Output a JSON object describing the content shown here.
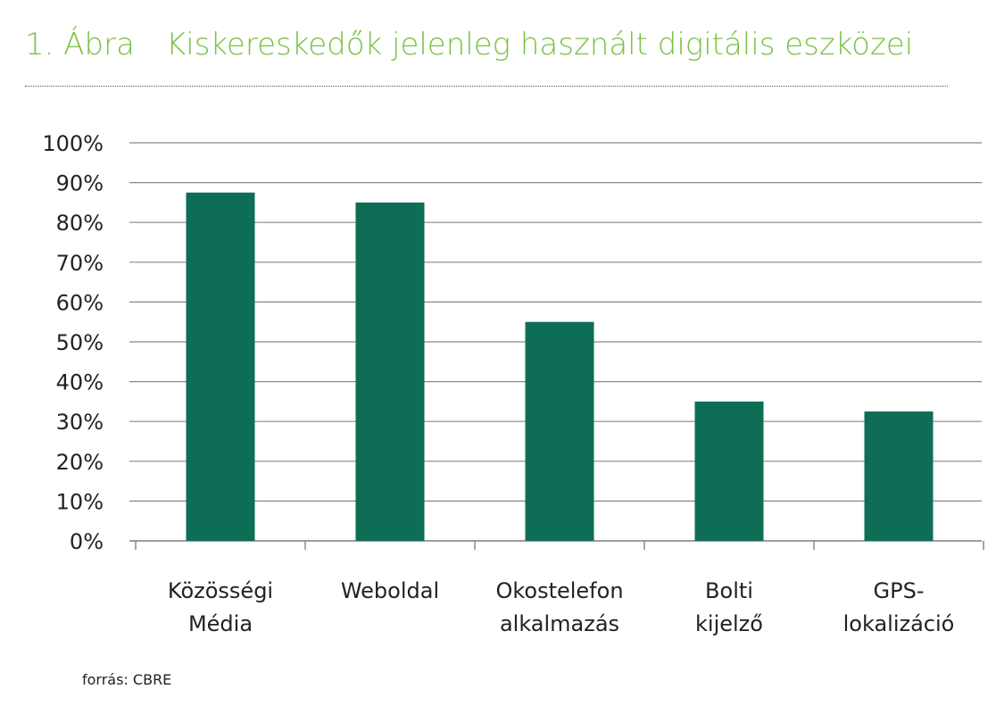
{
  "header": {
    "figure_number": "1. Ábra",
    "title": "Kiskereskedők jelenleg használt digitális eszközei"
  },
  "source": "forrás: CBRE",
  "colors": {
    "bar": "#0e6e55",
    "title": "#7ac143",
    "grid": "#888888"
  },
  "chart_data": {
    "type": "bar",
    "title": "Kiskereskedők jelenleg használt digitális eszközei",
    "categories": [
      [
        "Közösségi",
        "Média"
      ],
      [
        "Weboldal"
      ],
      [
        "Okostelefon",
        "alkalmazás"
      ],
      [
        "Bolti",
        "kijelző"
      ],
      [
        "GPS-",
        "lokalizáció"
      ]
    ],
    "values": [
      87.5,
      85,
      55,
      35,
      32.5
    ],
    "yticks": [
      "0%",
      "10%",
      "20%",
      "30%",
      "40%",
      "50%",
      "60%",
      "70%",
      "80%",
      "90%",
      "100%"
    ],
    "ylim": [
      0,
      100
    ],
    "grid": true,
    "legend": "none"
  }
}
